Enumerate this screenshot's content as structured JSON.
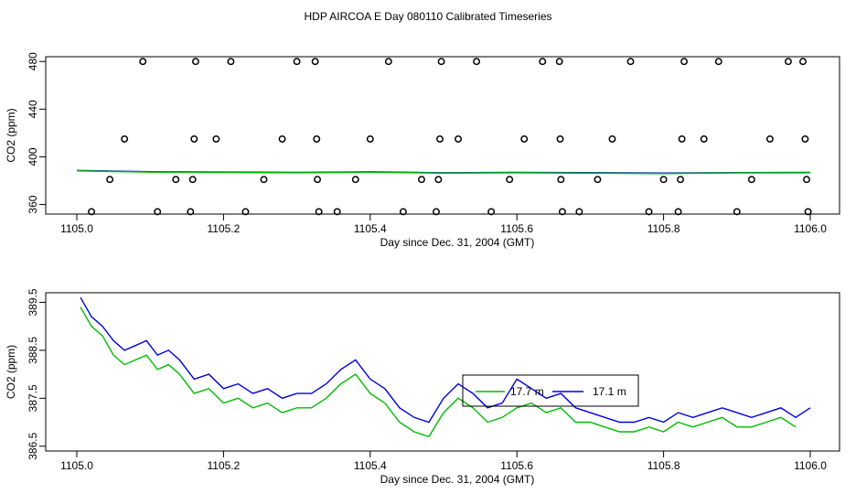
{
  "title": "HDP AIRCOA E  Day 080110  Calibrated Timeseries",
  "colors": {
    "blue": "#0000dd",
    "green": "#00bb00",
    "black": "#000000"
  },
  "chart_data": [
    {
      "type": "scatter",
      "xlabel": "Day since Dec. 31, 2004 (GMT)",
      "ylabel": "CO2 (ppm)",
      "xlim": [
        1105.0,
        1106.0
      ],
      "ylim": [
        352,
        484
      ],
      "xticks": [
        "1105.0",
        "1105.2",
        "1105.4",
        "1105.6",
        "1105.8",
        "1106.0"
      ],
      "yticks": [
        "360",
        "400",
        "440",
        "480"
      ],
      "grid": false,
      "points": [
        [
          1105.02,
          354
        ],
        [
          1105.045,
          381
        ],
        [
          1105.065,
          415
        ],
        [
          1105.09,
          480
        ],
        [
          1105.11,
          354
        ],
        [
          1105.135,
          381
        ],
        [
          1105.155,
          354
        ],
        [
          1105.158,
          381
        ],
        [
          1105.16,
          415
        ],
        [
          1105.162,
          480
        ],
        [
          1105.19,
          415
        ],
        [
          1105.21,
          480
        ],
        [
          1105.23,
          354
        ],
        [
          1105.255,
          381
        ],
        [
          1105.28,
          415
        ],
        [
          1105.3,
          480
        ],
        [
          1105.325,
          480
        ],
        [
          1105.327,
          415
        ],
        [
          1105.328,
          381
        ],
        [
          1105.33,
          354
        ],
        [
          1105.355,
          354
        ],
        [
          1105.38,
          381
        ],
        [
          1105.4,
          415
        ],
        [
          1105.425,
          480
        ],
        [
          1105.445,
          354
        ],
        [
          1105.47,
          381
        ],
        [
          1105.49,
          354
        ],
        [
          1105.493,
          381
        ],
        [
          1105.495,
          415
        ],
        [
          1105.497,
          480
        ],
        [
          1105.52,
          415
        ],
        [
          1105.545,
          480
        ],
        [
          1105.565,
          354
        ],
        [
          1105.59,
          381
        ],
        [
          1105.61,
          415
        ],
        [
          1105.635,
          480
        ],
        [
          1105.658,
          480
        ],
        [
          1105.659,
          415
        ],
        [
          1105.66,
          381
        ],
        [
          1105.662,
          354
        ],
        [
          1105.685,
          354
        ],
        [
          1105.71,
          381
        ],
        [
          1105.73,
          415
        ],
        [
          1105.755,
          480
        ],
        [
          1105.78,
          354
        ],
        [
          1105.8,
          381
        ],
        [
          1105.82,
          354
        ],
        [
          1105.823,
          381
        ],
        [
          1105.825,
          415
        ],
        [
          1105.828,
          480
        ],
        [
          1105.855,
          415
        ],
        [
          1105.875,
          480
        ],
        [
          1105.9,
          354
        ],
        [
          1105.92,
          381
        ],
        [
          1105.945,
          415
        ],
        [
          1105.97,
          480
        ],
        [
          1105.99,
          480
        ],
        [
          1105.993,
          415
        ],
        [
          1105.995,
          381
        ],
        [
          1105.997,
          354
        ]
      ],
      "series": [
        {
          "values_x": [
            1105.0,
            1105.1,
            1105.2,
            1105.3,
            1105.4,
            1105.5,
            1105.6,
            1105.7,
            1105.8,
            1105.9,
            1106.0
          ],
          "values_y": [
            388.5,
            387.5,
            387.2,
            386.9,
            387.4,
            386.6,
            386.9,
            386.7,
            386.3,
            386.8,
            386.9
          ],
          "color": "#0000dd"
        },
        {
          "values_x": [
            1105.0,
            1105.1,
            1105.2,
            1105.3,
            1105.4,
            1105.5,
            1105.6,
            1105.7,
            1105.8,
            1105.9,
            1106.0
          ],
          "values_y": [
            388.3,
            387.2,
            386.9,
            386.6,
            387.1,
            386.3,
            386.6,
            386.3,
            386.0,
            386.5,
            386.6
          ],
          "color": "#00bb00"
        }
      ]
    },
    {
      "type": "line",
      "xlabel": "Day since Dec. 31, 2004 (GMT)",
      "ylabel": "CO2 (ppm)",
      "xlim": [
        1105.0,
        1106.0
      ],
      "ylim": [
        386.4,
        389.7
      ],
      "xticks": [
        "1105.0",
        "1105.2",
        "1105.4",
        "1105.6",
        "1105.8",
        "1106.0"
      ],
      "yticks": [
        "386.5",
        "387.5",
        "388.5",
        "389.5"
      ],
      "grid": false,
      "legend_position": "center",
      "series": [
        {
          "name": "17.7 m",
          "color": "#00bb00",
          "x": [
            1105.005,
            1105.02,
            1105.035,
            1105.05,
            1105.065,
            1105.08,
            1105.095,
            1105.11,
            1105.125,
            1105.14,
            1105.16,
            1105.18,
            1105.2,
            1105.22,
            1105.24,
            1105.26,
            1105.28,
            1105.3,
            1105.32,
            1105.34,
            1105.36,
            1105.38,
            1105.4,
            1105.42,
            1105.44,
            1105.46,
            1105.48,
            1105.5,
            1105.52,
            1105.54,
            1105.56,
            1105.58,
            1105.6,
            1105.62,
            1105.64,
            1105.66,
            1105.68,
            1105.7,
            1105.72,
            1105.74,
            1105.76,
            1105.78,
            1105.8,
            1105.82,
            1105.84,
            1105.86,
            1105.88,
            1105.9,
            1105.92,
            1105.94,
            1105.96,
            1105.98
          ],
          "y": [
            389.4,
            389.0,
            388.8,
            388.4,
            388.2,
            388.3,
            388.4,
            388.1,
            388.2,
            388.0,
            387.6,
            387.7,
            387.4,
            387.5,
            387.3,
            387.4,
            387.2,
            387.3,
            387.3,
            387.5,
            387.8,
            388.0,
            387.6,
            387.4,
            387.0,
            386.8,
            386.7,
            387.2,
            387.5,
            387.3,
            387.0,
            387.1,
            387.3,
            387.4,
            387.2,
            387.3,
            387.0,
            387.0,
            386.9,
            386.8,
            386.8,
            386.9,
            386.8,
            387.0,
            386.9,
            387.0,
            387.1,
            386.9,
            386.9,
            387.0,
            387.1,
            386.9
          ]
        },
        {
          "name": "17.1 m",
          "color": "#0000dd",
          "x": [
            1105.005,
            1105.02,
            1105.035,
            1105.05,
            1105.065,
            1105.08,
            1105.095,
            1105.11,
            1105.125,
            1105.14,
            1105.16,
            1105.18,
            1105.2,
            1105.22,
            1105.24,
            1105.26,
            1105.28,
            1105.3,
            1105.32,
            1105.34,
            1105.36,
            1105.38,
            1105.4,
            1105.42,
            1105.44,
            1105.46,
            1105.48,
            1105.5,
            1105.52,
            1105.54,
            1105.56,
            1105.58,
            1105.6,
            1105.62,
            1105.64,
            1105.66,
            1105.68,
            1105.7,
            1105.72,
            1105.74,
            1105.76,
            1105.78,
            1105.8,
            1105.82,
            1105.84,
            1105.86,
            1105.88,
            1105.9,
            1105.92,
            1105.94,
            1105.96,
            1105.98,
            1106.0
          ],
          "y": [
            389.6,
            389.2,
            389.0,
            388.7,
            388.5,
            388.6,
            388.7,
            388.4,
            388.5,
            388.3,
            387.9,
            388.0,
            387.7,
            387.8,
            387.6,
            387.7,
            387.5,
            387.6,
            387.6,
            387.8,
            388.1,
            388.3,
            387.9,
            387.7,
            387.3,
            387.1,
            387.0,
            387.5,
            387.8,
            387.6,
            387.3,
            387.4,
            387.9,
            387.7,
            387.5,
            387.6,
            387.3,
            387.2,
            387.1,
            387.0,
            387.0,
            387.1,
            387.0,
            387.2,
            387.1,
            387.2,
            387.3,
            387.2,
            387.1,
            387.2,
            387.3,
            387.1,
            387.3
          ]
        }
      ]
    }
  ]
}
